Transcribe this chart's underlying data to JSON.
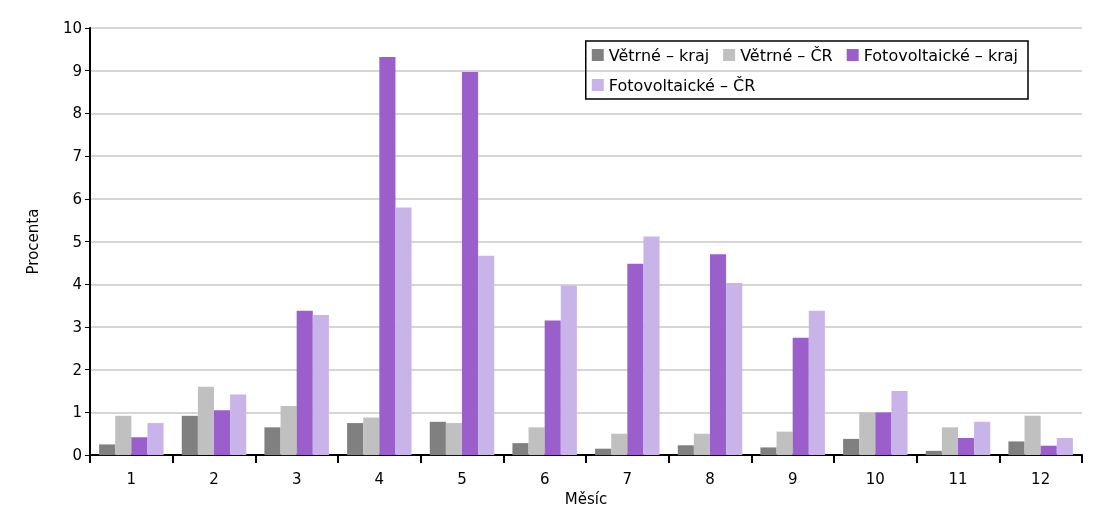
{
  "chart_data": {
    "type": "bar",
    "xlabel": "Měsíc",
    "ylabel": "Procenta",
    "categories": [
      "1",
      "2",
      "3",
      "4",
      "5",
      "6",
      "7",
      "8",
      "9",
      "10",
      "11",
      "12"
    ],
    "series": [
      {
        "name": "Větrné – kraj",
        "color": "#808080",
        "values": [
          0.25,
          0.92,
          0.65,
          0.75,
          0.78,
          0.28,
          0.15,
          0.23,
          0.18,
          0.38,
          0.1,
          0.32
        ]
      },
      {
        "name": "Větrné – ČR",
        "color": "#c0c0c0",
        "values": [
          0.92,
          1.6,
          1.15,
          0.88,
          0.75,
          0.65,
          0.5,
          0.5,
          0.55,
          1.0,
          0.65,
          0.92
        ]
      },
      {
        "name": "Fotovoltaické – kraj",
        "color": "#9b5fcc",
        "values": [
          0.42,
          1.05,
          3.38,
          9.32,
          8.97,
          3.15,
          4.48,
          4.7,
          2.75,
          1.0,
          0.4,
          0.22
        ]
      },
      {
        "name": "Fotovoltaické – ČR",
        "color": "#c8b4e8",
        "values": [
          0.75,
          1.42,
          3.28,
          5.8,
          4.67,
          3.97,
          5.12,
          4.03,
          3.38,
          1.5,
          0.78,
          0.4
        ]
      }
    ],
    "ylim": [
      0,
      10
    ],
    "yticks": [
      0,
      1,
      2,
      3,
      4,
      5,
      6,
      7,
      8,
      9,
      10
    ],
    "grid": "y",
    "legend": "top right"
  }
}
